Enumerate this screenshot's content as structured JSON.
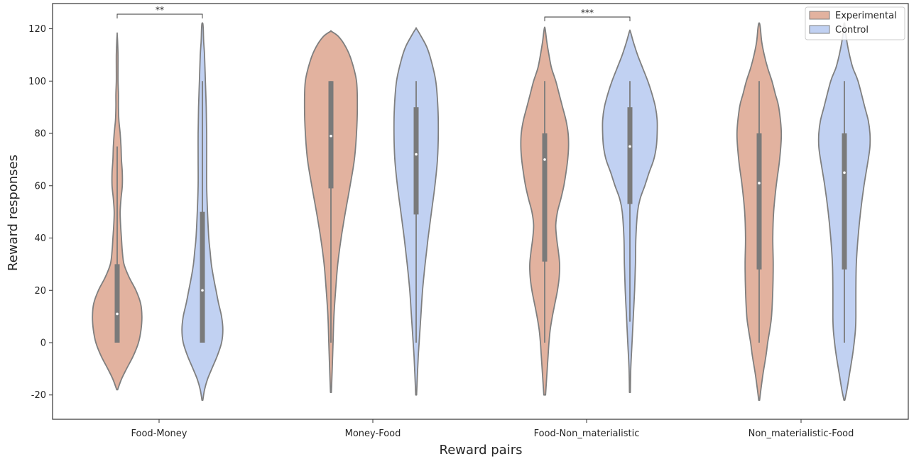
{
  "chart_data": {
    "type": "violin",
    "xlabel": "Reward pairs",
    "ylabel": "Reward responses",
    "ylim": [
      -30,
      128
    ],
    "yticks": [
      -20,
      0,
      20,
      40,
      60,
      80,
      100,
      120
    ],
    "categories": [
      "Food-Money",
      "Money-Food",
      "Food-Non_materialistic",
      "Non_materialistic-Food"
    ],
    "legend_position": "top-right",
    "grid": false,
    "series": [
      {
        "name": "Experimental",
        "color": "#e2b29f",
        "stats": [
          {
            "min": 0,
            "q1": 0,
            "median": 11,
            "q3": 30,
            "max": 75,
            "kde_min": -18,
            "kde_max": 118
          },
          {
            "min": 0,
            "q1": 59,
            "median": 79,
            "q3": 100,
            "max": 100,
            "kde_min": -19,
            "kde_max": 119
          },
          {
            "min": 0,
            "q1": 31,
            "median": 70,
            "q3": 80,
            "max": 100,
            "kde_min": -20,
            "kde_max": 120
          },
          {
            "min": 0,
            "q1": 28,
            "median": 61,
            "q3": 80,
            "max": 100,
            "kde_min": -22,
            "kde_max": 122
          }
        ]
      },
      {
        "name": "Control",
        "color": "#c1d1f2",
        "stats": [
          {
            "min": 0,
            "q1": 0,
            "median": 20,
            "q3": 50,
            "max": 100,
            "kde_min": -22,
            "kde_max": 122
          },
          {
            "min": 0,
            "q1": 49,
            "median": 72,
            "q3": 90,
            "max": 100,
            "kde_min": -20,
            "kde_max": 120
          },
          {
            "min": 8,
            "q1": 53,
            "median": 75,
            "q3": 90,
            "max": 100,
            "kde_min": -19,
            "kde_max": 119
          },
          {
            "min": 0,
            "q1": 28,
            "median": 65,
            "q3": 80,
            "max": 100,
            "kde_min": -22,
            "kde_max": 122
          }
        ]
      }
    ],
    "violin_profiles": {
      "Experimental": [
        [
          [
            -18,
            1
          ],
          [
            -14,
            10
          ],
          [
            -10,
            22
          ],
          [
            -5,
            38
          ],
          [
            0,
            50
          ],
          [
            5,
            56
          ],
          [
            10,
            58
          ],
          [
            15,
            55
          ],
          [
            20,
            44
          ],
          [
            25,
            28
          ],
          [
            30,
            16
          ],
          [
            35,
            12
          ],
          [
            40,
            10
          ],
          [
            45,
            8
          ],
          [
            50,
            7
          ],
          [
            55,
            9
          ],
          [
            60,
            12
          ],
          [
            65,
            12
          ],
          [
            70,
            10
          ],
          [
            75,
            9
          ],
          [
            80,
            7
          ],
          [
            85,
            4
          ],
          [
            90,
            3
          ],
          [
            95,
            3
          ],
          [
            100,
            2
          ],
          [
            105,
            2
          ],
          [
            110,
            2
          ],
          [
            115,
            1
          ],
          [
            118,
            0
          ]
        ],
        [
          [
            -19,
            1
          ],
          [
            -10,
            3
          ],
          [
            0,
            5
          ],
          [
            10,
            7
          ],
          [
            20,
            11
          ],
          [
            30,
            16
          ],
          [
            40,
            24
          ],
          [
            50,
            34
          ],
          [
            60,
            45
          ],
          [
            70,
            55
          ],
          [
            80,
            60
          ],
          [
            90,
            62
          ],
          [
            100,
            60
          ],
          [
            108,
            48
          ],
          [
            113,
            35
          ],
          [
            117,
            18
          ],
          [
            119,
            1
          ]
        ],
        [
          [
            -20,
            2
          ],
          [
            -15,
            4
          ],
          [
            -10,
            6
          ],
          [
            -5,
            8
          ],
          [
            0,
            10
          ],
          [
            5,
            13
          ],
          [
            10,
            18
          ],
          [
            15,
            24
          ],
          [
            20,
            30
          ],
          [
            25,
            34
          ],
          [
            30,
            35
          ],
          [
            35,
            32
          ],
          [
            40,
            28
          ],
          [
            45,
            26
          ],
          [
            50,
            30
          ],
          [
            55,
            38
          ],
          [
            60,
            45
          ],
          [
            65,
            50
          ],
          [
            70,
            54
          ],
          [
            75,
            56
          ],
          [
            80,
            55
          ],
          [
            85,
            50
          ],
          [
            90,
            42
          ],
          [
            95,
            34
          ],
          [
            100,
            26
          ],
          [
            105,
            16
          ],
          [
            110,
            10
          ],
          [
            115,
            5
          ],
          [
            120,
            1
          ]
        ],
        [
          [
            -22,
            1
          ],
          [
            -18,
            4
          ],
          [
            -12,
            9
          ],
          [
            -5,
            16
          ],
          [
            0,
            20
          ],
          [
            5,
            25
          ],
          [
            10,
            29
          ],
          [
            20,
            32
          ],
          [
            30,
            33
          ],
          [
            40,
            32
          ],
          [
            50,
            34
          ],
          [
            60,
            40
          ],
          [
            70,
            48
          ],
          [
            80,
            52
          ],
          [
            90,
            46
          ],
          [
            95,
            38
          ],
          [
            100,
            30
          ],
          [
            105,
            20
          ],
          [
            110,
            12
          ],
          [
            115,
            6
          ],
          [
            120,
            3
          ],
          [
            122,
            1
          ]
        ]
      ],
      "Control": [
        [
          [
            -22,
            1
          ],
          [
            -18,
            5
          ],
          [
            -14,
            12
          ],
          [
            -10,
            22
          ],
          [
            -5,
            35
          ],
          [
            0,
            45
          ],
          [
            5,
            48
          ],
          [
            10,
            45
          ],
          [
            15,
            38
          ],
          [
            20,
            32
          ],
          [
            25,
            26
          ],
          [
            30,
            21
          ],
          [
            35,
            18
          ],
          [
            40,
            15
          ],
          [
            50,
            12
          ],
          [
            60,
            10
          ],
          [
            70,
            10
          ],
          [
            80,
            10
          ],
          [
            90,
            9
          ],
          [
            100,
            7
          ],
          [
            110,
            5
          ],
          [
            115,
            3
          ],
          [
            120,
            2
          ],
          [
            122,
            1
          ]
        ],
        [
          [
            -20,
            1
          ],
          [
            -12,
            3
          ],
          [
            -5,
            5
          ],
          [
            0,
            7
          ],
          [
            10,
            11
          ],
          [
            20,
            15
          ],
          [
            30,
            21
          ],
          [
            40,
            28
          ],
          [
            50,
            36
          ],
          [
            60,
            44
          ],
          [
            70,
            50
          ],
          [
            80,
            52
          ],
          [
            90,
            51
          ],
          [
            100,
            46
          ],
          [
            108,
            35
          ],
          [
            113,
            25
          ],
          [
            117,
            12
          ],
          [
            120,
            1
          ]
        ],
        [
          [
            -19,
            1
          ],
          [
            -10,
            2
          ],
          [
            0,
            5
          ],
          [
            10,
            8
          ],
          [
            20,
            11
          ],
          [
            30,
            13
          ],
          [
            40,
            14
          ],
          [
            50,
            18
          ],
          [
            55,
            24
          ],
          [
            60,
            35
          ],
          [
            65,
            45
          ],
          [
            70,
            56
          ],
          [
            75,
            62
          ],
          [
            80,
            64
          ],
          [
            85,
            64
          ],
          [
            90,
            60
          ],
          [
            95,
            52
          ],
          [
            100,
            42
          ],
          [
            105,
            30
          ],
          [
            110,
            18
          ],
          [
            115,
            8
          ],
          [
            119,
            1
          ]
        ],
        [
          [
            -22,
            1
          ],
          [
            -18,
            6
          ],
          [
            -12,
            12
          ],
          [
            -5,
            19
          ],
          [
            0,
            23
          ],
          [
            5,
            26
          ],
          [
            10,
            27
          ],
          [
            20,
            27
          ],
          [
            30,
            28
          ],
          [
            40,
            32
          ],
          [
            50,
            38
          ],
          [
            60,
            46
          ],
          [
            70,
            56
          ],
          [
            75,
            60
          ],
          [
            80,
            60
          ],
          [
            85,
            56
          ],
          [
            90,
            48
          ],
          [
            100,
            32
          ],
          [
            105,
            20
          ],
          [
            110,
            12
          ],
          [
            115,
            6
          ],
          [
            120,
            2
          ],
          [
            122,
            1
          ]
        ]
      ]
    },
    "annotations": [
      {
        "text": "**",
        "between": [
          "Food-Money",
          "Experimental",
          "Control"
        ]
      },
      {
        "text": "***",
        "between": [
          "Food-Non_materialistic",
          "Experimental",
          "Control"
        ]
      }
    ]
  }
}
